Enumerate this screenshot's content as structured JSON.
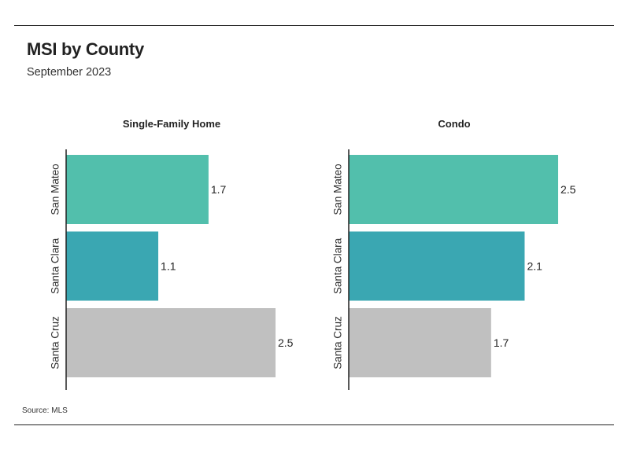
{
  "header": {
    "title": "MSI by County",
    "subtitle": "September 2023"
  },
  "footer": {
    "source": "Source:  MLS"
  },
  "colors": {
    "San Mateo": "#52bfac",
    "Santa Clara": "#3aa7b2",
    "Santa Cruz": "#c0c0c0",
    "axis": "#222222",
    "text": "#222222"
  },
  "chart_data": [
    {
      "type": "bar",
      "orientation": "horizontal",
      "title": "Single-Family Home",
      "categories": [
        "San Mateo",
        "Santa Clara",
        "Santa Cruz"
      ],
      "values": [
        1.7,
        1.1,
        2.5
      ],
      "xlim": [
        0,
        2.5
      ],
      "grid": false,
      "legend": "none"
    },
    {
      "type": "bar",
      "orientation": "horizontal",
      "title": "Condo",
      "categories": [
        "San Mateo",
        "Santa Clara",
        "Santa Cruz"
      ],
      "values": [
        2.5,
        2.1,
        1.7
      ],
      "xlim": [
        0,
        2.5
      ],
      "grid": false,
      "legend": "none"
    }
  ]
}
